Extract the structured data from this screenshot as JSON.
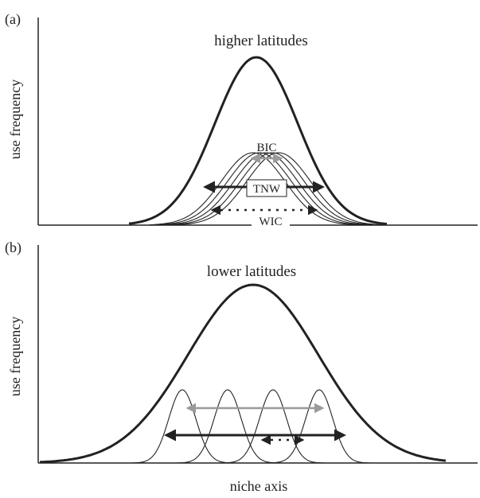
{
  "panels": [
    {
      "letter": "(a)",
      "title": "higher latitudes",
      "ylabel": "use frequency",
      "labels": {
        "bic": "BIC",
        "tnw": "TNW",
        "wic": "WIC"
      }
    },
    {
      "letter": "(b)",
      "title": "lower latitudes",
      "ylabel": "use frequency"
    }
  ],
  "xlabel": "niche axis",
  "colors": {
    "ink": "#222222",
    "grey_arrow": "#9a9a9a",
    "background": "#ffffff"
  }
}
